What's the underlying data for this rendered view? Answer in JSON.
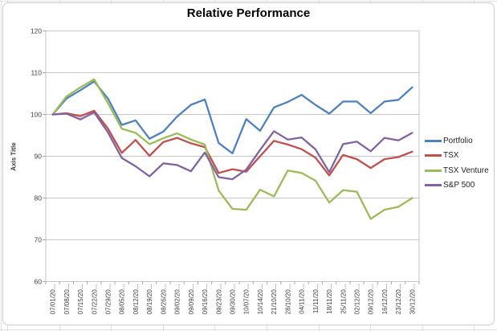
{
  "chart_data": {
    "type": "line",
    "title": "Relative Performance",
    "xlabel": "",
    "ylabel": "Axis Title",
    "ylim": [
      60,
      120
    ],
    "yticks": [
      60,
      70,
      80,
      90,
      100,
      110,
      120
    ],
    "grid": "horizontal",
    "legend_position": "right",
    "categories": [
      "07/01/20...",
      "07/08/20...",
      "07/15/20...",
      "07/22/20...",
      "07/29/20...",
      "08/05/20...",
      "08/12/20...",
      "08/19/20...",
      "08/26/20...",
      "09/02/20...",
      "09/09/20...",
      "09/16/20...",
      "09/23/20...",
      "09/30/20...",
      "10/07/20...",
      "10/14/20...",
      "21/10/20...",
      "28/10/20...",
      "04/11/20...",
      "11/11/20...",
      "18/11/20...",
      "25/11/20...",
      "02/12/20...",
      "09/12/20...",
      "16/12/20...",
      "23/12/20...",
      "30/12/20..."
    ],
    "series": [
      {
        "name": "Portfolio",
        "color": "#4F81BD",
        "values": [
          100,
          103.8,
          105.8,
          107.9,
          103.8,
          97.5,
          98.6,
          94.2,
          95.9,
          99.5,
          102.3,
          103.6,
          93.2,
          90.7,
          98.9,
          96.1,
          101.7,
          103.0,
          104.7,
          102.3,
          100.2,
          103.1,
          103.1,
          100.3,
          103.1,
          103.5,
          106.5
        ]
      },
      {
        "name": "TSX",
        "color": "#C0504D",
        "values": [
          100,
          100.3,
          99.6,
          100.9,
          96.6,
          90.8,
          93.9,
          90.1,
          93.4,
          94.4,
          93.1,
          92.2,
          86.0,
          86.9,
          86.3,
          90.0,
          93.7,
          92.8,
          91.7,
          89.7,
          85.4,
          90.3,
          89.3,
          87.2,
          89.3,
          89.8,
          91.1
        ]
      },
      {
        "name": "TSX Venture",
        "color": "#9BBB59",
        "values": [
          100,
          104.3,
          106.5,
          108.4,
          102.7,
          96.6,
          95.6,
          92.9,
          94.3,
          95.5,
          94.0,
          92.8,
          81.8,
          77.4,
          77.2,
          82.0,
          80.4,
          86.6,
          86.0,
          84.2,
          78.9,
          81.9,
          81.5,
          75.0,
          77.2,
          77.9,
          80.0
        ]
      },
      {
        "name": "S&P 500",
        "color": "#8064A2",
        "values": [
          100,
          100.2,
          98.8,
          100.5,
          95.7,
          89.6,
          87.6,
          85.2,
          88.3,
          87.9,
          86.4,
          90.9,
          85.0,
          84.5,
          86.8,
          91.5,
          96.0,
          94.0,
          94.5,
          91.7,
          86.2,
          92.9,
          93.5,
          91.2,
          94.4,
          93.8,
          95.6
        ]
      }
    ]
  }
}
